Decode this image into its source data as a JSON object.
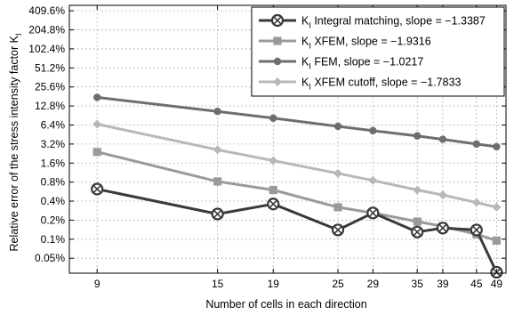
{
  "chart_data": {
    "type": "line",
    "title": "",
    "xlabel": "Number of cells in each direction",
    "ylabel": "Relative error of the stress intensity factor K",
    "ylabel_subscript": "I",
    "x_scale": "log",
    "y_scale": "log",
    "xlim": [
      8,
      51
    ],
    "ylim": [
      0.029,
      500
    ],
    "grid": true,
    "legend_placement": "top-right",
    "x_ticks": [
      9,
      15,
      19,
      25,
      29,
      35,
      39,
      45,
      49
    ],
    "x_tick_labels": [
      "9",
      "15",
      "19",
      "25",
      "29",
      "35",
      "39",
      "45",
      "49"
    ],
    "y_ticks": [
      0.05,
      0.1,
      0.2,
      0.4,
      0.8,
      1.6,
      3.2,
      6.4,
      12.8,
      25.6,
      51.2,
      102.4,
      204.8,
      409.6
    ],
    "y_tick_labels": [
      "0.05%",
      "0.1%",
      "0.2%",
      "0.4%",
      "0.8%",
      "1.6%",
      "3.2%",
      "6.4%",
      "12.8%",
      "25.6%",
      "51.2%",
      "102.4%",
      "204.8%",
      "409.6%"
    ],
    "x": [
      9,
      15,
      19,
      25,
      29,
      35,
      39,
      45,
      49
    ],
    "series": [
      {
        "name_prefix": "K",
        "name_sub": "I",
        "name_rest": " Integral matching, slope = −1.3387",
        "color": "#3a3a3a",
        "marker": "circle-x",
        "width": 3,
        "values": [
          0.62,
          0.25,
          0.36,
          0.14,
          0.26,
          0.13,
          0.15,
          0.14,
          0.03
        ]
      },
      {
        "name_prefix": "K",
        "name_sub": "I",
        "name_rest": " XFEM, slope = −1.9316",
        "color": "#9a9a9a",
        "marker": "square",
        "width": 3,
        "values": [
          2.4,
          0.82,
          0.6,
          0.32,
          0.26,
          0.19,
          0.16,
          0.12,
          0.095
        ]
      },
      {
        "name_prefix": "K",
        "name_sub": "I",
        "name_rest": " FEM, slope = −1.0217",
        "color": "#6e6e6e",
        "marker": "dot",
        "width": 3,
        "values": [
          17.5,
          10.5,
          8.2,
          6.1,
          5.2,
          4.3,
          3.8,
          3.2,
          2.9
        ]
      },
      {
        "name_prefix": "K",
        "name_sub": "I",
        "name_rest": " XFEM cutoff, slope = −1.7833",
        "color": "#b8b8b8",
        "marker": "diamond",
        "width": 3,
        "values": [
          6.6,
          2.6,
          1.75,
          1.1,
          0.85,
          0.6,
          0.5,
          0.38,
          0.32
        ]
      }
    ]
  }
}
